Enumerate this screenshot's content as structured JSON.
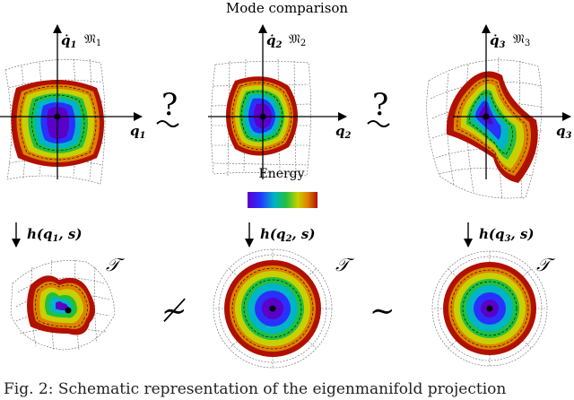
{
  "title": "Mode comparison",
  "modes": [
    {
      "q_label": "q",
      "sub": "1",
      "qdot_label": "q̇",
      "manifold": "𝔐",
      "map": "h(q",
      "map_sub": "1",
      "map_tail": ", s)"
    },
    {
      "q_label": "q",
      "sub": "2",
      "qdot_label": "q̇",
      "manifold": "𝔐",
      "map": "h(q",
      "map_sub": "2",
      "map_tail": ", s)"
    },
    {
      "q_label": "q",
      "sub": "3",
      "qdot_label": "q̇",
      "manifold": "𝔐",
      "map": "h(q",
      "map_sub": "3",
      "map_tail": ", s)"
    }
  ],
  "top_relations": [
    "?",
    "?"
  ],
  "bottom_relations": [
    "≁",
    "∼"
  ],
  "target_label": "𝒯",
  "legend": {
    "label": "Energy",
    "colors": [
      "#5a00c8",
      "#2a30ff",
      "#00b4c8",
      "#20c040",
      "#c8d000",
      "#e08000",
      "#b01000"
    ]
  },
  "caption": "Fig. 2: Schematic representation of the eigenmanifold projection"
}
